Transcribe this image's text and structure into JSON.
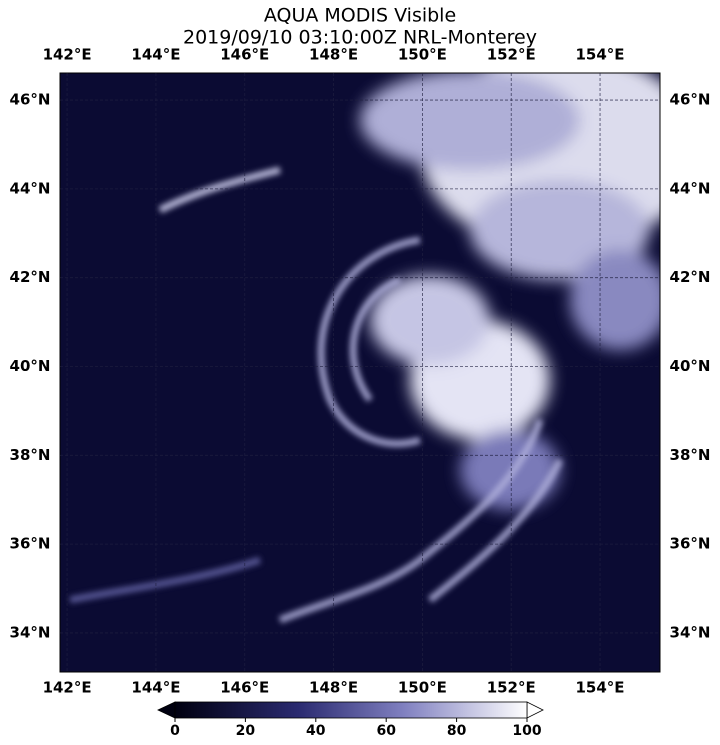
{
  "map": {
    "title": [
      "AQUA MODIS Visible",
      "2019/09/10 03:10:00Z NRL-Monterey"
    ],
    "lonlim": [
      141.84,
      155.35
    ],
    "latlim": [
      33.12,
      46.61
    ],
    "lon_ticks": [
      {
        "value": 142,
        "label": "142°E"
      },
      {
        "value": 144,
        "label": "144°E"
      },
      {
        "value": 146,
        "label": "146°E"
      },
      {
        "value": 148,
        "label": "148°E"
      },
      {
        "value": 150,
        "label": "150°E"
      },
      {
        "value": 152,
        "label": "152°E"
      },
      {
        "value": 154,
        "label": "154°E"
      }
    ],
    "lat_ticks": [
      {
        "value": 46,
        "label": "46°N"
      },
      {
        "value": 44,
        "label": "44°N"
      },
      {
        "value": 42,
        "label": "42°N"
      },
      {
        "value": 40,
        "label": "40°N"
      },
      {
        "value": 38,
        "label": "38°N"
      },
      {
        "value": 36,
        "label": "36°N"
      },
      {
        "value": 34,
        "label": "34°N"
      }
    ],
    "colorbar": {
      "range": [
        0,
        100
      ],
      "ticks": [
        0,
        20,
        40,
        60,
        80,
        100
      ]
    }
  }
}
